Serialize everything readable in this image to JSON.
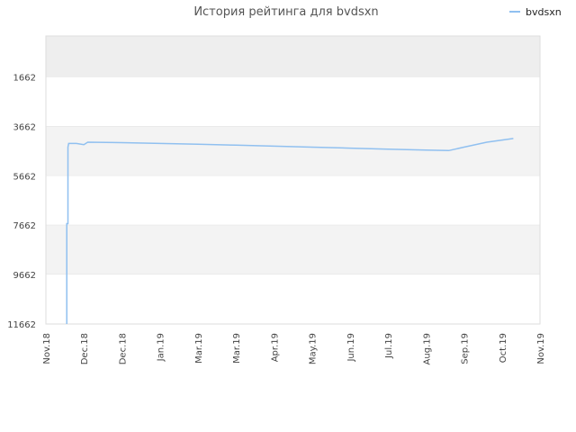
{
  "chart_data": {
    "type": "line",
    "title": "История рейтинга для bvdsxn",
    "xlabel": "",
    "ylabel": "",
    "y_inverted": true,
    "ylim": [
      11662,
      0
    ],
    "y_ticks": [
      1662,
      3662,
      5662,
      7662,
      9662,
      11662
    ],
    "y_tick_labels": [
      "1662",
      "3662",
      "5662",
      "7662",
      "9662",
      "11662"
    ],
    "x_tick_labels": [
      "Nov.18",
      "Dec.18",
      "Dec.18",
      "Jan.19",
      "Mar.19",
      "Mar.19",
      "Apr.19",
      "May.19",
      "Jun.19",
      "Jul.19",
      "Aug.19",
      "Sep.19",
      "Oct.19",
      "Nov.19"
    ],
    "x_range": [
      0,
      13
    ],
    "legend": {
      "position": "top-right"
    },
    "grid": true,
    "band_colors": [
      "#eeeeee",
      "#ffffff",
      "#f3f3f3",
      "#ffffff",
      "#f3f3f3",
      "#ffffff"
    ],
    "line_color": "#90c0f0",
    "series": [
      {
        "name": "bvdsxn",
        "points": [
          [
            0.55,
            11662
          ],
          [
            0.55,
            7600
          ],
          [
            0.58,
            7600
          ],
          [
            0.58,
            4500
          ],
          [
            0.6,
            4350
          ],
          [
            0.8,
            4350
          ],
          [
            1.0,
            4400
          ],
          [
            1.1,
            4300
          ],
          [
            2.0,
            4320
          ],
          [
            3.0,
            4350
          ],
          [
            4.0,
            4380
          ],
          [
            5.0,
            4420
          ],
          [
            6.0,
            4460
          ],
          [
            7.0,
            4500
          ],
          [
            8.0,
            4540
          ],
          [
            9.0,
            4580
          ],
          [
            10.0,
            4620
          ],
          [
            10.6,
            4640
          ],
          [
            11.0,
            4500
          ],
          [
            11.6,
            4300
          ],
          [
            12.3,
            4150
          ]
        ]
      }
    ]
  }
}
